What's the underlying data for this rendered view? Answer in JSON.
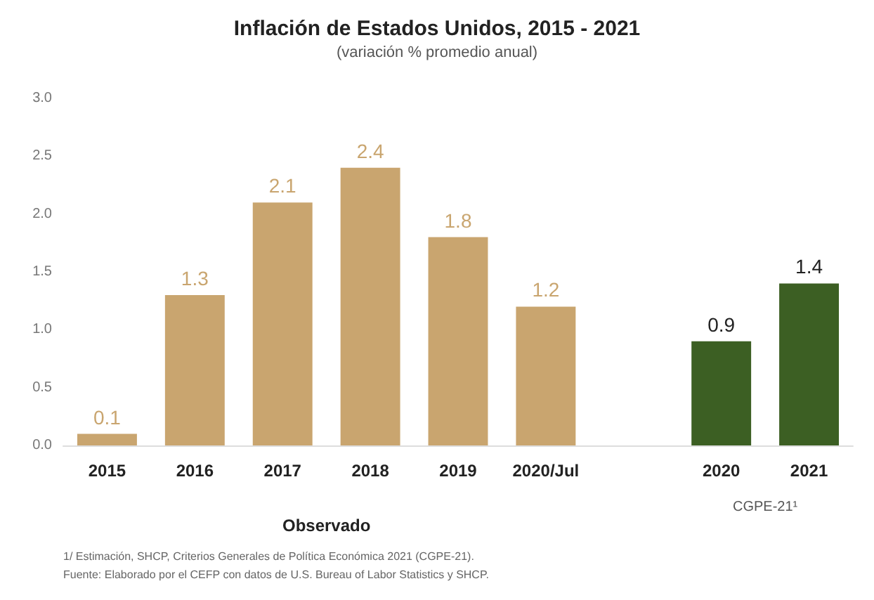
{
  "chart_data": {
    "type": "bar",
    "title": "Inflación de Estados Unidos, 2015 - 2021",
    "subtitle": "(variación % promedio anual)",
    "categories": [
      "2015",
      "2016",
      "2017",
      "2018",
      "2019",
      "2020/Jul",
      null,
      "2020",
      "2021"
    ],
    "values": [
      0.1,
      1.3,
      2.1,
      2.4,
      1.8,
      1.2,
      null,
      0.9,
      1.4
    ],
    "colors": [
      "#c9a56f",
      "#c9a56f",
      "#c9a56f",
      "#c9a56f",
      "#c9a56f",
      "#c9a56f",
      "#c9a56f",
      "#3c5f23",
      "#3c5f23"
    ],
    "data_labels": true,
    "grid": false,
    "ylim": [
      0,
      3
    ],
    "yticks": [
      {
        "value": 0,
        "label": "0.0"
      },
      {
        "value": 0.5,
        "label": "0.5"
      },
      {
        "value": 1,
        "label": "1.0"
      },
      {
        "value": 1.5,
        "label": "1.5"
      },
      {
        "value": 2,
        "label": "2.0"
      },
      {
        "value": 2.5,
        "label": "2.5"
      },
      {
        "value": 3,
        "label": "3.0"
      }
    ],
    "annotations": [
      "Observado",
      "CGPE-21¹",
      "1/ Estimación, SHCP, Criterios Generales de Política Económica 2021 (CGPE-21).",
      "Fuente: Elaborado por el CEFP con datos de U.S. Bureau of Labor Statistics y SHCP."
    ]
  }
}
